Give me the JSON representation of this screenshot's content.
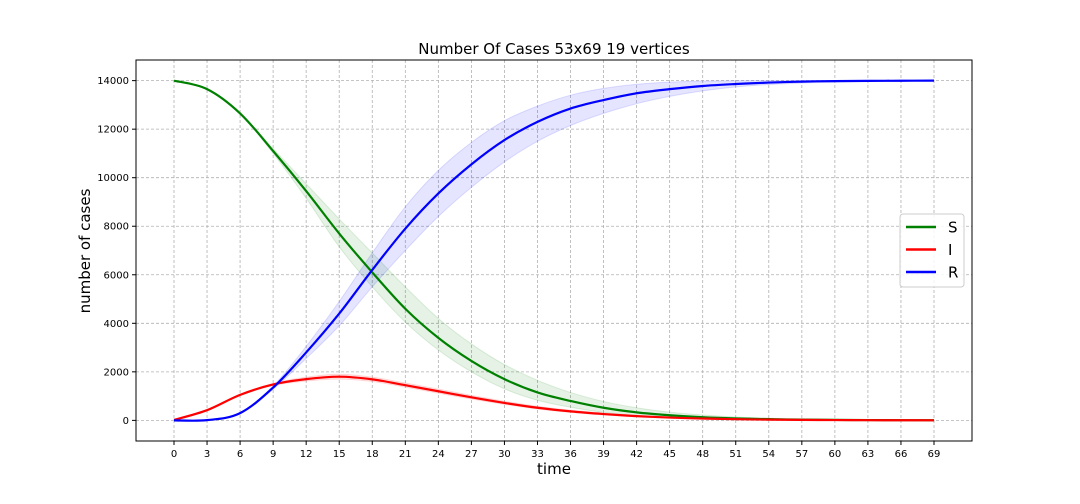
{
  "chart_data": {
    "type": "line",
    "title": "Number Of Cases 53x69 19 vertices",
    "xlabel": "time",
    "ylabel": "number of cases",
    "xlim": [
      -3.45,
      72.45
    ],
    "ylim": [
      -850,
      14850
    ],
    "xticks": [
      0,
      3,
      6,
      9,
      12,
      15,
      18,
      21,
      24,
      27,
      30,
      33,
      36,
      39,
      42,
      45,
      48,
      51,
      54,
      57,
      60,
      63,
      66,
      69
    ],
    "yticks": [
      0,
      2000,
      4000,
      6000,
      8000,
      10000,
      12000,
      14000
    ],
    "grid": true,
    "legend_position": "right",
    "x": [
      0,
      3,
      6,
      9,
      12,
      15,
      18,
      21,
      24,
      27,
      30,
      33,
      36,
      39,
      42,
      45,
      48,
      51,
      54,
      57,
      60,
      63,
      66,
      69
    ],
    "series": [
      {
        "name": "S",
        "color": "#008000",
        "band_color": "#008000",
        "values": [
          14000,
          13650,
          12650,
          11100,
          9450,
          7700,
          6100,
          4600,
          3400,
          2450,
          1700,
          1150,
          800,
          520,
          330,
          210,
          130,
          80,
          50,
          30,
          20,
          12,
          8,
          5
        ],
        "lower": [
          14000,
          13650,
          12650,
          11000,
          9150,
          7150,
          5500,
          4050,
          2900,
          2000,
          1300,
          830,
          540,
          330,
          200,
          120,
          70,
          40,
          25,
          15,
          10,
          6,
          4,
          2
        ],
        "upper": [
          14000,
          13650,
          12650,
          11200,
          9750,
          8300,
          6900,
          5500,
          4200,
          3150,
          2300,
          1650,
          1150,
          780,
          520,
          340,
          220,
          140,
          90,
          55,
          35,
          20,
          12,
          8
        ]
      },
      {
        "name": "I",
        "color": "#ff0000",
        "band_color": "#ff0000",
        "values": [
          20,
          420,
          1050,
          1480,
          1700,
          1800,
          1690,
          1450,
          1200,
          950,
          720,
          520,
          370,
          260,
          175,
          115,
          75,
          48,
          30,
          20,
          13,
          8,
          5,
          3
        ],
        "lower": [
          20,
          410,
          1020,
          1440,
          1620,
          1700,
          1600,
          1370,
          1120,
          880,
          660,
          470,
          330,
          225,
          150,
          95,
          60,
          38,
          24,
          15,
          10,
          6,
          4,
          2
        ],
        "upper": [
          20,
          430,
          1080,
          1520,
          1780,
          1900,
          1780,
          1540,
          1290,
          1030,
          790,
          580,
          420,
          300,
          205,
          140,
          95,
          62,
          40,
          26,
          17,
          11,
          7,
          4
        ]
      },
      {
        "name": "R",
        "color": "#0000ff",
        "band_color": "#0000ff",
        "values": [
          0,
          10,
          300,
          1350,
          2800,
          4400,
          6200,
          7900,
          9350,
          10550,
          11550,
          12300,
          12850,
          13200,
          13480,
          13650,
          13780,
          13860,
          13920,
          13960,
          13980,
          13990,
          13995,
          14000
        ],
        "lower": [
          0,
          10,
          280,
          1280,
          2550,
          3900,
          5500,
          7000,
          8400,
          9600,
          10650,
          11500,
          12150,
          12650,
          13050,
          13350,
          13580,
          13740,
          13840,
          13900,
          13940,
          13970,
          13985,
          13995
        ],
        "upper": [
          0,
          10,
          320,
          1420,
          3050,
          4900,
          6900,
          8800,
          10300,
          11450,
          12350,
          12950,
          13400,
          13680,
          13850,
          13940,
          13980,
          13995,
          14000,
          14000,
          14000,
          14000,
          14000,
          14000
        ]
      }
    ]
  }
}
